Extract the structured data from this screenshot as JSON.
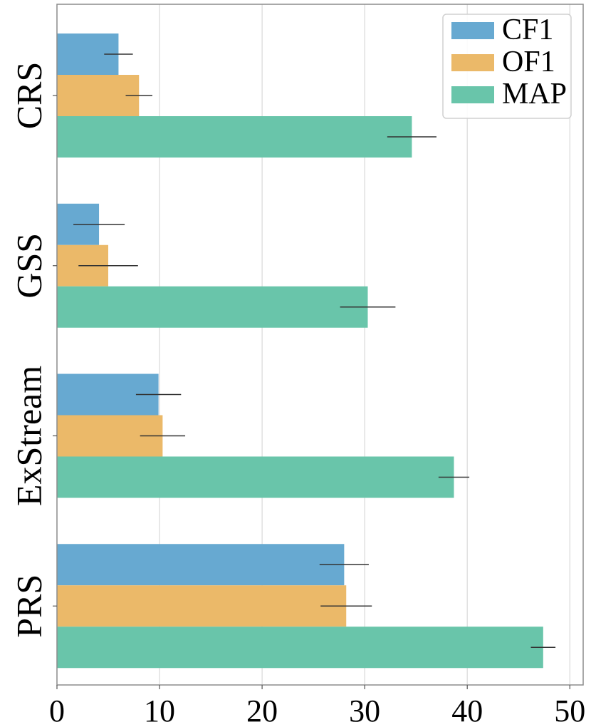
{
  "chart_data": {
    "type": "bar",
    "orientation": "horizontal",
    "title": "",
    "xlabel": "",
    "ylabel": "",
    "categories": [
      "CRS",
      "GSS",
      "ExStream",
      "PRS"
    ],
    "series": [
      {
        "name": "CF1",
        "color": "#67a9d1",
        "values": [
          6.0,
          4.1,
          9.9,
          28.0
        ],
        "errors": [
          1.4,
          2.5,
          2.2,
          2.4
        ]
      },
      {
        "name": "OF1",
        "color": "#ebb969",
        "values": [
          8.0,
          5.0,
          10.3,
          28.2
        ],
        "errors": [
          1.3,
          2.9,
          2.2,
          2.5
        ]
      },
      {
        "name": "MAP",
        "color": "#69c5aa",
        "values": [
          34.6,
          30.3,
          38.7,
          47.4
        ],
        "errors": [
          2.4,
          2.7,
          1.5,
          1.2
        ]
      }
    ],
    "xlim": [
      0,
      51.3
    ],
    "xticks": [
      "0",
      "10",
      "20",
      "30",
      "40",
      "50"
    ],
    "grid": "vertical",
    "legend_position": "top-right"
  }
}
